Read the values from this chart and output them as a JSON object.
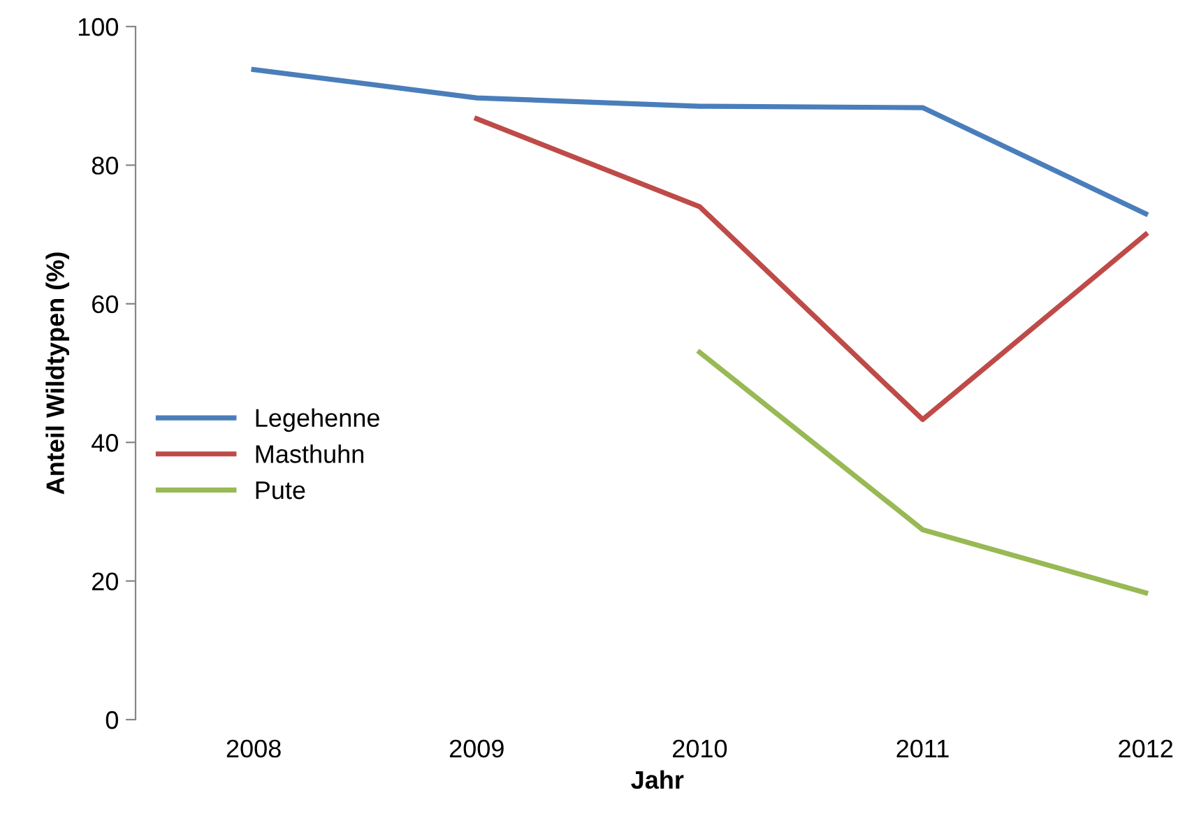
{
  "chart_data": {
    "type": "line",
    "xlabel": "Jahr",
    "ylabel": "Anteil Wildtypen (%)",
    "categories": [
      "2008",
      "2009",
      "2010",
      "2011",
      "2012"
    ],
    "series": [
      {
        "name": "Legehenne",
        "color": "#4a7ebb",
        "values": [
          93.8,
          89.7,
          88.5,
          88.3,
          73.0
        ]
      },
      {
        "name": "Masthuhn",
        "color": "#be4b48",
        "values": [
          null,
          86.7,
          74.0,
          43.3,
          70.0
        ]
      },
      {
        "name": "Pute",
        "color": "#98b954",
        "values": [
          null,
          null,
          53.0,
          27.4,
          18.3
        ]
      }
    ],
    "ylim": [
      0,
      100
    ],
    "yticks": [
      0,
      20,
      40,
      60,
      80,
      100
    ],
    "grid": false,
    "legend": "left",
    "marker": "none",
    "line_style": "solid"
  }
}
